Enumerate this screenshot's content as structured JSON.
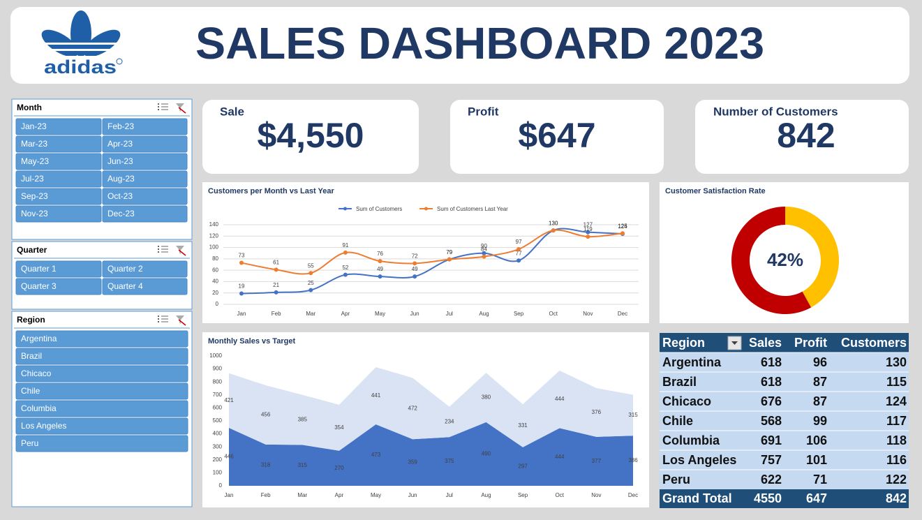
{
  "header": {
    "logo_text": "adidas",
    "title": "SALES DASHBOARD 2023"
  },
  "slicers": [
    {
      "title": "Month",
      "items": [
        "Jan-23",
        "Feb-23",
        "Mar-23",
        "Apr-23",
        "May-23",
        "Jun-23",
        "Jul-23",
        "Aug-23",
        "Sep-23",
        "Oct-23",
        "Nov-23",
        "Dec-23"
      ]
    },
    {
      "title": "Quarter",
      "items": [
        "Quarter 1",
        "Quarter 2",
        "Quarter 3",
        "Quarter 4"
      ]
    },
    {
      "title": "Region",
      "items": [
        "Argentina",
        "Brazil",
        "Chicaco",
        "Chile",
        "Columbia",
        "Los Angeles",
        "Peru"
      ]
    }
  ],
  "kpis": [
    {
      "label": "Sale",
      "value": "$4,550"
    },
    {
      "label": "Profit",
      "value": "$647"
    },
    {
      "label": "Number of Customers",
      "value": "842"
    }
  ],
  "chart_data": [
    {
      "type": "line",
      "title": "Customers per Month vs Last Year",
      "categories": [
        "Jan",
        "Feb",
        "Mar",
        "Apr",
        "May",
        "Jun",
        "Jul",
        "Aug",
        "Sep",
        "Oct",
        "Nov",
        "Dec"
      ],
      "series": [
        {
          "name": "Sum of Customers",
          "color": "#4472c4",
          "values": [
            19,
            21,
            25,
            52,
            49,
            49,
            79,
            90,
            77,
            130,
            127,
            124
          ]
        },
        {
          "name": "Sum of Customers Last Year",
          "color": "#ed7d31",
          "values": [
            73,
            61,
            55,
            91,
            76,
            72,
            79,
            84,
            97,
            130,
            119,
            125
          ]
        }
      ],
      "ylim": [
        0,
        140
      ],
      "yticks": [
        0,
        20,
        40,
        60,
        80,
        100,
        120,
        140
      ],
      "grid": true,
      "legend": "top"
    },
    {
      "type": "doughnut",
      "title": "Customer Satisfaction Rate",
      "values": [
        42,
        58
      ],
      "value_labels": [
        "42%",
        null
      ],
      "colors": [
        "#ffc000",
        "#c00000"
      ]
    },
    {
      "type": "area",
      "title": "Monthly Sales vs Target",
      "stacked": true,
      "categories": [
        "Jan",
        "Feb",
        "Mar",
        "Apr",
        "May",
        "Jun",
        "Jul",
        "Aug",
        "Sep",
        "Oct",
        "Nov",
        "Dec"
      ],
      "series": [
        {
          "color": "#4472c4",
          "values": [
            446,
            318,
            315,
            270,
            473,
            359,
            375,
            490,
            297,
            444,
            377,
            386
          ]
        },
        {
          "color": "#dae3f3",
          "values": [
            421,
            456,
            385,
            354,
            441,
            472,
            234,
            380,
            331,
            444,
            376,
            315
          ]
        }
      ],
      "ylim": [
        0,
        1000
      ],
      "yticks": [
        0,
        100,
        200,
        300,
        400,
        500,
        600,
        700,
        800,
        900,
        1000
      ],
      "grid": false
    }
  ],
  "table": {
    "columns": [
      "Region",
      "Sales",
      "Profit",
      "Customers"
    ],
    "rows": [
      [
        "Argentina",
        618,
        96,
        130
      ],
      [
        "Brazil",
        618,
        87,
        115
      ],
      [
        "Chicaco",
        676,
        87,
        124
      ],
      [
        "Chile",
        568,
        99,
        117
      ],
      [
        "Columbia",
        691,
        106,
        118
      ],
      [
        "Los Angeles",
        757,
        101,
        116
      ],
      [
        "Peru",
        622,
        71,
        122
      ]
    ],
    "total": [
      "Grand Total",
      4550,
      647,
      842
    ]
  }
}
